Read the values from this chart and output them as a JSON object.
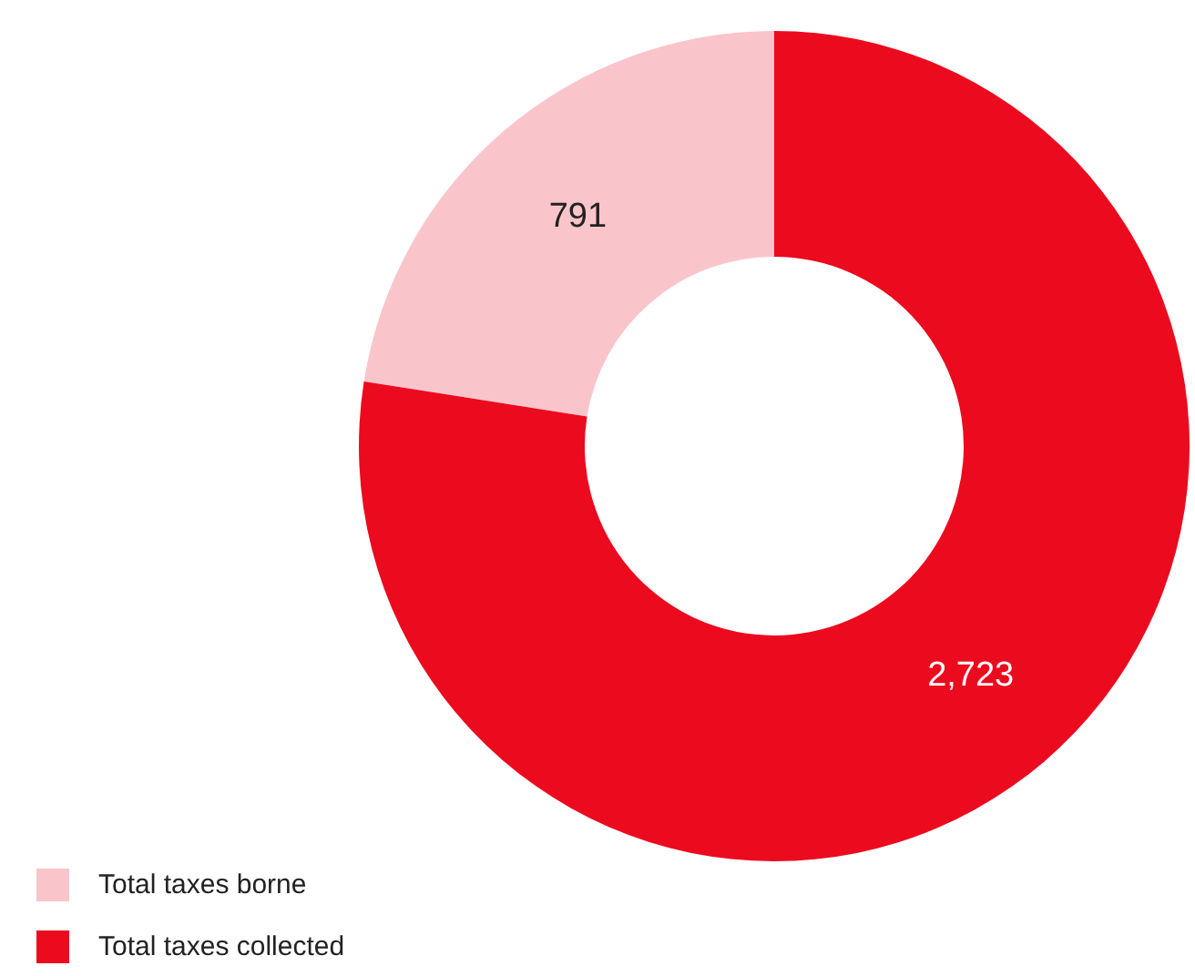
{
  "chart_data": {
    "type": "donut",
    "categories": [
      "Total taxes borne",
      "Total taxes collected"
    ],
    "values": [
      791,
      2723
    ],
    "colors": [
      "#f9c5cb",
      "#ec0a1e"
    ],
    "value_labels": [
      "791",
      "2,723"
    ],
    "legend": "bottom left"
  }
}
